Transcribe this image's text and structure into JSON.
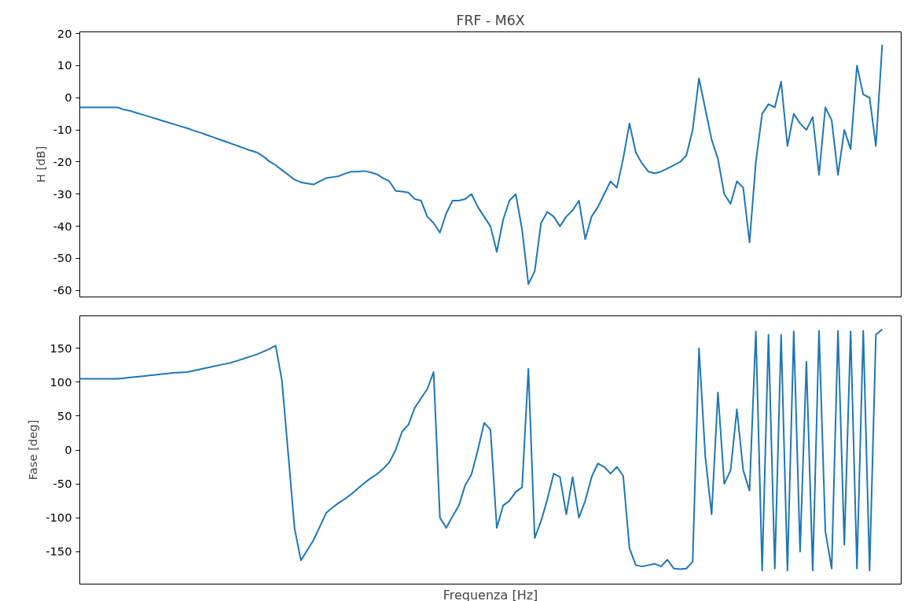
{
  "chart_data": [
    {
      "type": "line",
      "title": "FRF - M6X",
      "ylabel": "H [dB]",
      "tick_labels": "y",
      "ylim": [
        -62,
        20.5
      ],
      "yticks": [
        -60,
        -50,
        -40,
        -30,
        -20,
        -10,
        0,
        10,
        20
      ],
      "categories": [
        null,
        null,
        null,
        null,
        null,
        null,
        null,
        null,
        null,
        null,
        null,
        null,
        null,
        null,
        null,
        null,
        null,
        null,
        null,
        null,
        null,
        null,
        null,
        null,
        null,
        null,
        null,
        null,
        null,
        null,
        null,
        null,
        null,
        null,
        null,
        null,
        null,
        null,
        null,
        null,
        null,
        null,
        null,
        null,
        null,
        null,
        null,
        null,
        null,
        null,
        null,
        null,
        null,
        null,
        null,
        null,
        null,
        null,
        null,
        null,
        null,
        null,
        null,
        null,
        null,
        null,
        null,
        null,
        null,
        null,
        null,
        null,
        null,
        null,
        null,
        null,
        null,
        null,
        null,
        null,
        null,
        null,
        null,
        null,
        null,
        null,
        null,
        null,
        null,
        null,
        null,
        null,
        null,
        null,
        null,
        null,
        null,
        null,
        null,
        null,
        null,
        null,
        null,
        null,
        null,
        null,
        null,
        null,
        null,
        null,
        null,
        null,
        null,
        null,
        null,
        null,
        null,
        null,
        null,
        null,
        null,
        null,
        null,
        null,
        null,
        null,
        null,
        null,
        null,
        null,
        null
      ],
      "series": [
        {
          "color": "#1f77b4",
          "values": [
            -3,
            -3,
            -3,
            -3,
            -3,
            -3,
            -3,
            -3.7,
            -4.1,
            -4.7,
            -5.3,
            -5.9,
            -6.5,
            -7.1,
            -7.7,
            -8.3,
            -8.9,
            -9.5,
            -10.2,
            -10.8,
            -11.5,
            -12.2,
            -12.9,
            -13.6,
            -14.3,
            -15,
            -15.7,
            -16.4,
            -17,
            -18.2,
            -19.8,
            -21,
            -22.5,
            -24,
            -25.5,
            -26.3,
            -26.7,
            -27,
            -26,
            -25,
            -24.7,
            -24.4,
            -23.6,
            -23,
            -23,
            -22.8,
            -23.2,
            -23.8,
            -25,
            -26,
            -29,
            -29.2,
            -29.5,
            -31.5,
            -32,
            -37,
            -39,
            -42,
            -36,
            -32,
            -32,
            -31.5,
            -30,
            -34,
            -37,
            -40,
            -48,
            -38,
            -32,
            -30,
            -41,
            -58,
            -54,
            -39,
            -35.5,
            -37,
            -40,
            -37,
            -35,
            -32,
            -44,
            -37,
            -34,
            -30,
            -26,
            -28,
            -19,
            -8,
            -17,
            -20.5,
            -23,
            -23.5,
            -23,
            -22,
            -21,
            -20,
            -18,
            -10,
            6,
            -3.5,
            -13,
            -19,
            -30,
            -33,
            -26,
            -28,
            -45,
            -20,
            -5,
            -2,
            -3,
            5,
            -15,
            -5,
            -8,
            -10,
            -6,
            -24,
            -3,
            -7,
            -24,
            -10,
            -16,
            10,
            1,
            0,
            -15,
            16.5,
            null,
            null,
            null
          ]
        }
      ]
    },
    {
      "type": "line",
      "xlabel": "Frequenza [Hz]",
      "ylabel": "Fase [deg]",
      "tick_labels": "y",
      "ylim": [
        -198,
        198
      ],
      "yticks": [
        -150,
        -100,
        -50,
        0,
        50,
        100,
        150
      ],
      "categories": [
        null,
        null,
        null,
        null,
        null,
        null,
        null,
        null,
        null,
        null,
        null,
        null,
        null,
        null,
        null,
        null,
        null,
        null,
        null,
        null,
        null,
        null,
        null,
        null,
        null,
        null,
        null,
        null,
        null,
        null,
        null,
        null,
        null,
        null,
        null,
        null,
        null,
        null,
        null,
        null,
        null,
        null,
        null,
        null,
        null,
        null,
        null,
        null,
        null,
        null,
        null,
        null,
        null,
        null,
        null,
        null,
        null,
        null,
        null,
        null,
        null,
        null,
        null,
        null,
        null,
        null,
        null,
        null,
        null,
        null,
        null,
        null,
        null,
        null,
        null,
        null,
        null,
        null,
        null,
        null,
        null,
        null,
        null,
        null,
        null,
        null,
        null,
        null,
        null,
        null,
        null,
        null,
        null,
        null,
        null,
        null,
        null,
        null,
        null,
        null,
        null,
        null,
        null,
        null,
        null,
        null,
        null,
        null,
        null,
        null,
        null,
        null,
        null,
        null,
        null,
        null,
        null,
        null,
        null,
        null,
        null,
        null,
        null,
        null,
        null,
        null,
        null,
        null,
        null,
        null,
        null
      ],
      "series": [
        {
          "color": "#1f77b4",
          "values": [
            105,
            105,
            105,
            105,
            105,
            105,
            105,
            106,
            107,
            108,
            109,
            110,
            111,
            112,
            113,
            114,
            114.5,
            115,
            117,
            119,
            121,
            123,
            125,
            127,
            129,
            132,
            135,
            138,
            141,
            145,
            149,
            154,
            102,
            -7,
            -116,
            -163,
            -148,
            -133,
            -113,
            -93,
            -85,
            -78,
            -72,
            -65,
            -57,
            -49,
            -42,
            -36,
            -28,
            -18,
            0,
            27,
            37,
            62,
            76,
            90,
            115,
            -100,
            -115,
            -98,
            -82,
            -52,
            -36,
            0,
            40,
            30,
            -115,
            -82,
            -75,
            -62,
            -55,
            120,
            -130,
            -105,
            -73,
            -35,
            -40,
            -95,
            -40,
            -100,
            -75,
            -40,
            -20,
            -25,
            -35,
            -25,
            -38,
            -145,
            -170,
            -172,
            -170,
            -168,
            -172,
            -162,
            -175,
            -176,
            -175,
            -165,
            150,
            -10,
            -95,
            85,
            -50,
            -30,
            60,
            -30,
            -60,
            175,
            -178,
            170,
            -175,
            170,
            -178,
            175,
            -150,
            130,
            -178,
            176,
            -120,
            -175,
            176,
            -140,
            175,
            -175,
            176,
            -178,
            170,
            178,
            null,
            null,
            null
          ]
        }
      ]
    }
  ]
}
